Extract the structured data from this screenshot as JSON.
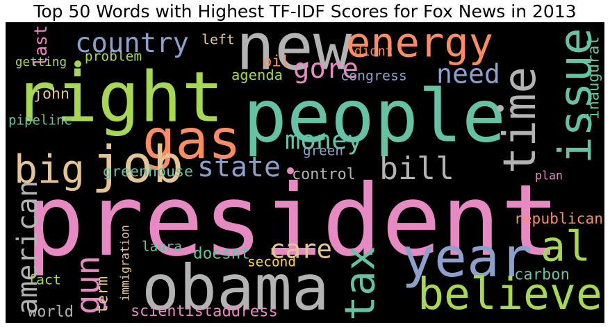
{
  "chart_data": {
    "type": "wordcloud",
    "title": "Top 50 Words with Highest TF-IDF Scores for Fox News in 2013",
    "background": "#000000",
    "palette": "Set2",
    "words": [
      {
        "text": "president",
        "color": "#e78ac3",
        "vertical": false
      },
      {
        "text": "people",
        "color": "#66c2a5",
        "vertical": false
      },
      {
        "text": "right",
        "color": "#a6d854",
        "vertical": false
      },
      {
        "text": "new",
        "color": "#b3b3b3",
        "vertical": false
      },
      {
        "text": "obama",
        "color": "#b3b3b3",
        "vertical": false
      },
      {
        "text": "year",
        "color": "#8da0cb",
        "vertical": false
      },
      {
        "text": "issue",
        "color": "#66c2a5",
        "vertical": true
      },
      {
        "text": "time",
        "color": "#b3b3b3",
        "vertical": true
      },
      {
        "text": "energy",
        "color": "#fc8d62",
        "vertical": false
      },
      {
        "text": "gas",
        "color": "#fc8d62",
        "vertical": false
      },
      {
        "text": "believe",
        "color": "#a6d854",
        "vertical": false
      },
      {
        "text": "big",
        "color": "#e5c494",
        "vertical": false
      },
      {
        "text": "bill",
        "color": "#b3b3b3",
        "vertical": false
      },
      {
        "text": "tax",
        "color": "#66c2a5",
        "vertical": true
      },
      {
        "text": "gun",
        "color": "#e78ac3",
        "vertical": true
      },
      {
        "text": "al",
        "color": "#a6d854",
        "vertical": false
      },
      {
        "text": "american",
        "color": "#b3b3b3",
        "vertical": true
      },
      {
        "text": "job",
        "color": "#e5c494",
        "vertical": false
      },
      {
        "text": "country",
        "color": "#8da0cb",
        "vertical": false
      },
      {
        "text": "gore",
        "color": "#e78ac3",
        "vertical": false
      },
      {
        "text": "care",
        "color": "#e5c494",
        "vertical": false
      },
      {
        "text": "need",
        "color": "#8da0cb",
        "vertical": false
      },
      {
        "text": "money",
        "color": "#66c2a5",
        "vertical": false
      },
      {
        "text": "state",
        "color": "#8da0cb",
        "vertical": false
      },
      {
        "text": "greenhouse",
        "color": "#66c2a5",
        "vertical": false
      },
      {
        "text": "carbon",
        "color": "#66c2a5",
        "vertical": false
      },
      {
        "text": "republican",
        "color": "#fc8d62",
        "vertical": false
      },
      {
        "text": "immigration",
        "color": "#e5c494",
        "vertical": true
      },
      {
        "text": "scientist",
        "color": "#e78ac3",
        "vertical": false
      },
      {
        "text": "address",
        "color": "#e78ac3",
        "vertical": false
      },
      {
        "text": "laura",
        "color": "#66c2a5",
        "vertical": false
      },
      {
        "text": "doesnt",
        "color": "#66c2a5",
        "vertical": false
      },
      {
        "text": "second",
        "color": "#ffd92f",
        "vertical": false
      },
      {
        "text": "plan",
        "color": "#e78ac3",
        "vertical": false
      },
      {
        "text": "control",
        "color": "#b3b3b3",
        "vertical": false
      },
      {
        "text": "green",
        "color": "#8da0cb",
        "vertical": false
      },
      {
        "text": "congress",
        "color": "#8da0cb",
        "vertical": false
      },
      {
        "text": "agenda",
        "color": "#a6d854",
        "vertical": false
      },
      {
        "text": "oil",
        "color": "#fc8d62",
        "vertical": false
      },
      {
        "text": "didnt",
        "color": "#fc8d62",
        "vertical": false
      },
      {
        "text": "left",
        "color": "#e5c494",
        "vertical": false
      },
      {
        "text": "inaugural",
        "color": "#66c2a5",
        "vertical": true
      },
      {
        "text": "problem",
        "color": "#a6d854",
        "vertical": false
      },
      {
        "text": "getting",
        "color": "#a6d854",
        "vertical": false
      },
      {
        "text": "last",
        "color": "#e78ac3",
        "vertical": true
      },
      {
        "text": "john",
        "color": "#e5c494",
        "vertical": false
      },
      {
        "text": "pipeline",
        "color": "#66c2a5",
        "vertical": false
      },
      {
        "text": "fact",
        "color": "#a6d854",
        "vertical": false
      },
      {
        "text": "term",
        "color": "#e5c494",
        "vertical": true
      },
      {
        "text": "world",
        "color": "#b3b3b3",
        "vertical": false
      }
    ]
  }
}
